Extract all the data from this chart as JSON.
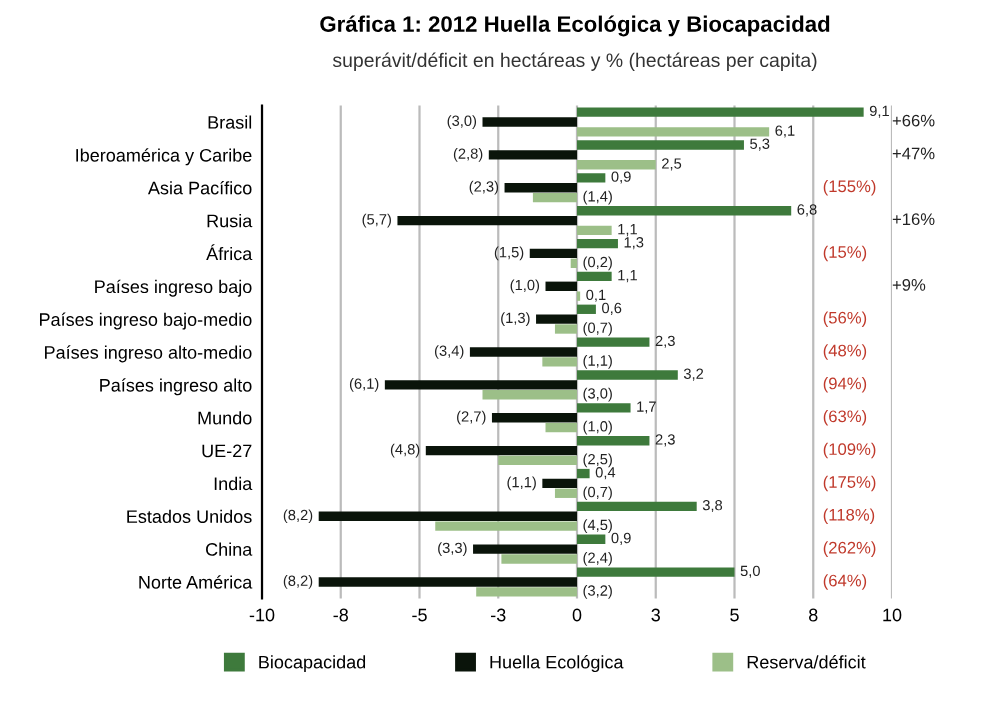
{
  "chart_data": {
    "type": "bar",
    "orientation": "horizontal",
    "title": "Gráfica 1: 2012 Huella Ecológica y Biocapacidad",
    "subtitle": "superávit/déficit en hectáreas y % (hectáreas per capita)",
    "categories": [
      "Brasil",
      "Iberoamérica y Caribe",
      "Asia Pacífico",
      "Rusia",
      "África",
      "Países ingreso bajo",
      "Países ingreso bajo-medio",
      "Países ingreso alto-medio",
      "Países ingreso alto",
      "Mundo",
      "UE-27",
      "India",
      "Estados Unidos",
      "China",
      "Norte América"
    ],
    "series": [
      {
        "name": "Biocapacidad",
        "color": "#3e7a3c",
        "values": [
          9.1,
          5.3,
          0.9,
          6.8,
          1.3,
          1.1,
          0.6,
          2.3,
          3.2,
          1.7,
          2.3,
          0.4,
          3.8,
          0.9,
          5.0
        ],
        "value_labels": [
          "9,1",
          "5,3",
          "0,9",
          "6,8",
          "1,3",
          "1,1",
          "0,6",
          "2,3",
          "3,2",
          "1,7",
          "2,3",
          "0,4",
          "3,8",
          "0,9",
          "5,0"
        ]
      },
      {
        "name": "Huella Ecológica",
        "color": "#0a140a",
        "values": [
          -3.0,
          -2.8,
          -2.3,
          -5.7,
          -1.5,
          -1.0,
          -1.3,
          -3.4,
          -6.1,
          -2.7,
          -4.8,
          -1.1,
          -8.2,
          -3.3,
          -8.2
        ],
        "value_labels": [
          "(3,0)",
          "(2,8)",
          "(2,3)",
          "(5,7)",
          "(1,5)",
          "(1,0)",
          "(1,3)",
          "(3,4)",
          "(6,1)",
          "(2,7)",
          "(4,8)",
          "(1,1)",
          "(8,2)",
          "(3,3)",
          "(8,2)"
        ]
      },
      {
        "name": "Reserva/déficit",
        "color": "#9cbf88",
        "values": [
          6.1,
          2.5,
          -1.4,
          1.1,
          -0.2,
          0.1,
          -0.7,
          -1.1,
          -3.0,
          -1.0,
          -2.5,
          -0.7,
          -4.5,
          -2.4,
          -3.2
        ],
        "value_labels": [
          "6,1",
          "2,5",
          "(1,4)",
          "1,1",
          "(0,2)",
          "0,1",
          "(0,7)",
          "(1,1)",
          "(3,0)",
          "(1,0)",
          "(2,5)",
          "(0,7)",
          "(4,5)",
          "(2,4)",
          "(3,2)"
        ]
      }
    ],
    "xlim": [
      -10,
      10
    ],
    "xticks": [
      {
        "value": -10,
        "label": "-10"
      },
      {
        "value": -7.5,
        "label": "-8"
      },
      {
        "value": -5,
        "label": "-5"
      },
      {
        "value": -2.5,
        "label": "-3"
      },
      {
        "value": 0,
        "label": "0"
      },
      {
        "value": 2.5,
        "label": "3"
      },
      {
        "value": 5,
        "label": "5"
      },
      {
        "value": 7.5,
        "label": "8"
      },
      {
        "value": 10,
        "label": "10"
      }
    ],
    "grid": "x",
    "legend": "bottom",
    "annotations": [
      "+66%",
      "+47%",
      "(155%)",
      "+16%",
      "(15%)",
      "+9%",
      "(56%)",
      "(48%)",
      "(94%)",
      "(63%)",
      "(109%)",
      "(175%)",
      "(118%)",
      "(262%)",
      "(64%)"
    ]
  }
}
